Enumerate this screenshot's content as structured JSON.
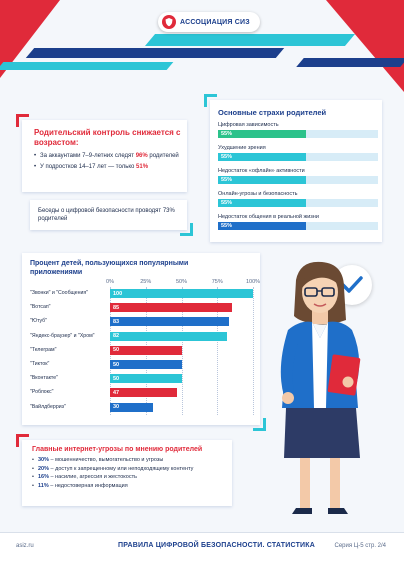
{
  "header": {
    "logo_text": "АССОЦИАЦИЯ СИЗ",
    "brand_colors": {
      "red": "#e02a3a",
      "navy": "#1c3f8c",
      "cyan": "#2cc5d6"
    }
  },
  "control": {
    "title": "Родительский контроль снижается с возрастом:",
    "items": [
      {
        "prefix": "За аккаунтами 7–9-летних следят ",
        "highlight": "96%",
        "suffix": " родителей"
      },
      {
        "prefix": "У подростков 14–17 лет — только ",
        "highlight": "51%",
        "suffix": ""
      }
    ]
  },
  "talk": {
    "text": "Беседы о цифровой безопасности проводят 73% родителей"
  },
  "fears": {
    "title": "Основные страхи родителей",
    "items": [
      {
        "label": "Цифровая зависимость",
        "value_label": "55%",
        "value": 55,
        "color": "#2bc28a"
      },
      {
        "label": "Ухудшение зрения",
        "value_label": "55%",
        "value": 55,
        "color": "#2cc5d6"
      },
      {
        "label": "Недостаток «офлайн» активности",
        "value_label": "55%",
        "value": 55,
        "color": "#2cc5d6"
      },
      {
        "label": "Онлайн-угрозы и безопасность",
        "value_label": "55%",
        "value": 55,
        "color": "#2cc5d6"
      },
      {
        "label": "Недостаток общения в реальной жизни",
        "value_label": "55%",
        "value": 55,
        "color": "#1f6fc9"
      }
    ]
  },
  "chart_data": {
    "type": "bar",
    "orientation": "horizontal",
    "title": "Процент детей, пользующихся популярными приложениями",
    "ticks": [
      "0%",
      "25%",
      "50%",
      "75%",
      "100%"
    ],
    "xlim": [
      0,
      100
    ],
    "categories": [
      "\"Звонки\" и \"Сообщения\"",
      "\"Вотсап\"",
      "\"Ютуб\"",
      "\"Яндекс-браузер\" и \"Хром\"",
      "\"Телеграм\"",
      "\"Тикток\"",
      "\"Вконтакте\"",
      "\"Роблокс\"",
      "\"Вайлдберриз\""
    ],
    "values": [
      100,
      85,
      83,
      82,
      50,
      50,
      50,
      47,
      30
    ],
    "colors": [
      "#2cc5d6",
      "#e02a3a",
      "#1f6fc9",
      "#2cc5d6",
      "#e02a3a",
      "#1f6fc9",
      "#2cc5d6",
      "#e02a3a",
      "#1f6fc9"
    ]
  },
  "threats": {
    "title": "Главные интернет-угрозы по мнению родителей",
    "items": [
      {
        "pct": "30%",
        "text": " – мошенничество, вымогательство и угрозы"
      },
      {
        "pct": "20%",
        "text": " – доступ к запрещенному или неподходящему контенту"
      },
      {
        "pct": "16%",
        "text": " – насилие, агрессия и жестокость"
      },
      {
        "pct": "11%",
        "text": " – недостоверная информация"
      }
    ]
  },
  "footer": {
    "site": "asiz.ru",
    "title": "ПРАВИЛА ЦИФРОВОЙ БЕЗОПАСНОСТИ. СТАТИСТИКА",
    "series": "Серия Ц-5 стр. 2/4"
  },
  "illustration": {
    "icon": "woman-with-check-icon"
  }
}
